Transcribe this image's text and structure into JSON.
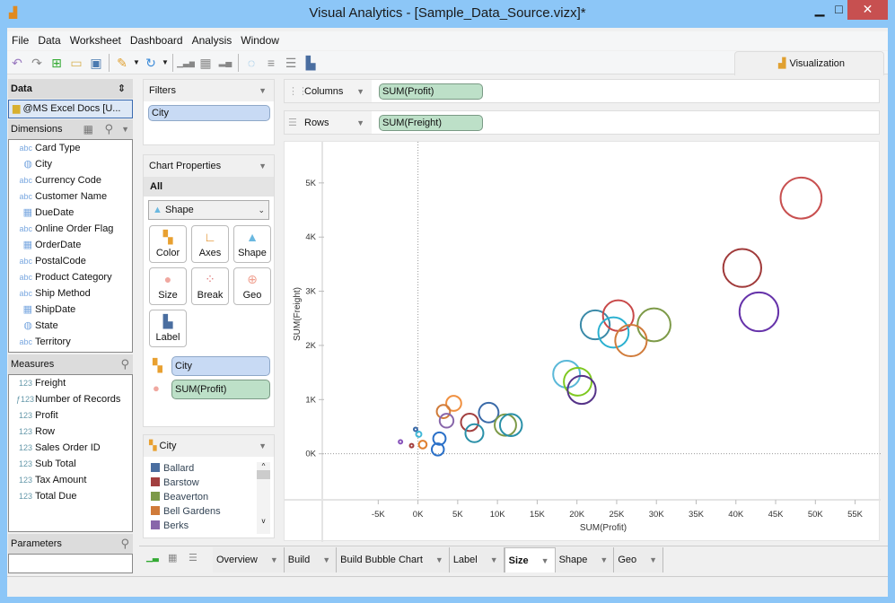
{
  "window": {
    "title": "Visual Analytics - [Sample_Data_Source.vizx]*",
    "minimize": "▁",
    "maximize": "□",
    "close": "✕"
  },
  "menu": [
    "File",
    "Data",
    "Worksheet",
    "Dashboard",
    "Analysis",
    "Window"
  ],
  "toolbar_icons": [
    "undo-icon",
    "redo-icon",
    "new-icon",
    "open-icon",
    "save-icon",
    "connect-icon",
    "refresh-icon",
    "add-chart-icon",
    "add-table-icon",
    "chart-icon",
    "lasso-icon",
    "sort-asc-icon",
    "sort-desc-icon",
    "label-icon"
  ],
  "viz_tab": "Visualization",
  "data_panel": {
    "title": "Data",
    "source": "@MS Excel Docs [U...",
    "dimensions_title": "Dimensions",
    "dimensions": [
      {
        "type": "abc",
        "label": "Card Type"
      },
      {
        "type": "geo",
        "label": "City"
      },
      {
        "type": "abc",
        "label": "Currency Code"
      },
      {
        "type": "abc",
        "label": "Customer Name"
      },
      {
        "type": "date",
        "label": "DueDate"
      },
      {
        "type": "abc",
        "label": "Online Order Flag"
      },
      {
        "type": "date",
        "label": "OrderDate"
      },
      {
        "type": "abc",
        "label": "PostalCode"
      },
      {
        "type": "abc",
        "label": "Product Category"
      },
      {
        "type": "abc",
        "label": "Ship Method"
      },
      {
        "type": "date",
        "label": "ShipDate"
      },
      {
        "type": "geo",
        "label": "State"
      },
      {
        "type": "abc",
        "label": "Territory"
      }
    ],
    "measures_title": "Measures",
    "measures": [
      {
        "type": "123",
        "label": "Freight"
      },
      {
        "type": "fx123",
        "label": "Number of Records"
      },
      {
        "type": "123",
        "label": "Profit"
      },
      {
        "type": "123",
        "label": "Row"
      },
      {
        "type": "123",
        "label": "Sales Order ID"
      },
      {
        "type": "123",
        "label": "Sub Total"
      },
      {
        "type": "123",
        "label": "Tax Amount"
      },
      {
        "type": "123",
        "label": "Total Due"
      }
    ],
    "parameters_title": "Parameters"
  },
  "filters": {
    "title": "Filters",
    "items": [
      "City"
    ]
  },
  "chart_properties": {
    "title": "Chart Properties",
    "scope": "All",
    "mark_type": "Shape",
    "buttons": [
      "Color",
      "Axes",
      "Shape",
      "Size",
      "Break",
      "Geo",
      "Label"
    ],
    "color_field": "City",
    "size_field": "SUM(Profit)"
  },
  "legend": {
    "title": "City",
    "items": [
      {
        "label": "Ballard",
        "color": "#4a6ea0"
      },
      {
        "label": "Barstow",
        "color": "#a23f3f"
      },
      {
        "label": "Beaverton",
        "color": "#7d9a48"
      },
      {
        "label": "Bell Gardens",
        "color": "#d07b3a"
      },
      {
        "label": "Berks",
        "color": "#8866aa"
      }
    ]
  },
  "shelves": {
    "columns_label": "Columns",
    "columns_pill": "SUM(Profit)",
    "rows_label": "Rows",
    "rows_pill": "SUM(Freight)"
  },
  "tabs": [
    {
      "label": "Overview"
    },
    {
      "label": "Build"
    },
    {
      "label": "Build Bubble Chart"
    },
    {
      "label": "Label"
    },
    {
      "label": "Size",
      "active": true
    },
    {
      "label": "Shape"
    },
    {
      "label": "Geo"
    }
  ],
  "chart_data": {
    "type": "scatter",
    "mark": "bubble",
    "xlabel": "SUM(Profit)",
    "ylabel": "SUM(Freight)",
    "xlim": [
      -8.2,
      55.5
    ],
    "ylim": [
      -0.85,
      5.66
    ],
    "unit": "K",
    "xticks": [
      "-5K",
      "0K",
      "5K",
      "10K",
      "15K",
      "20K",
      "25K",
      "30K",
      "35K",
      "40K",
      "45K",
      "50K",
      "55K"
    ],
    "xtick_values": [
      -5,
      0,
      5,
      10,
      15,
      20,
      25,
      30,
      35,
      40,
      45,
      50,
      55
    ],
    "yticks": [
      "0K",
      "1K",
      "2K",
      "3K",
      "4K",
      "5K"
    ],
    "ytick_values": [
      0,
      1,
      2,
      3,
      4,
      5
    ],
    "points": [
      {
        "x": 48.2,
        "y": 4.72,
        "color": "#c85050"
      },
      {
        "x": 40.8,
        "y": 3.43,
        "color": "#a03a3a"
      },
      {
        "x": 42.9,
        "y": 2.62,
        "color": "#6633aa"
      },
      {
        "x": 22.3,
        "y": 2.38,
        "color": "#3a8aa8"
      },
      {
        "x": 25.2,
        "y": 2.55,
        "color": "#c84848"
      },
      {
        "x": 24.6,
        "y": 2.24,
        "color": "#2ab0d0"
      },
      {
        "x": 29.7,
        "y": 2.38,
        "color": "#7d9a48"
      },
      {
        "x": 26.8,
        "y": 2.09,
        "color": "#d07b3a"
      },
      {
        "x": 18.7,
        "y": 1.47,
        "color": "#5ab8d8"
      },
      {
        "x": 20.1,
        "y": 1.33,
        "color": "#7ec820"
      },
      {
        "x": 20.6,
        "y": 1.18,
        "color": "#553388"
      },
      {
        "x": 4.5,
        "y": 0.93,
        "color": "#f09040"
      },
      {
        "x": 3.2,
        "y": 0.78,
        "color": "#d07b3a"
      },
      {
        "x": 3.6,
        "y": 0.61,
        "color": "#8866aa"
      },
      {
        "x": 6.5,
        "y": 0.58,
        "color": "#a23f3f"
      },
      {
        "x": 8.9,
        "y": 0.76,
        "color": "#3a6aa8"
      },
      {
        "x": 7.1,
        "y": 0.38,
        "color": "#2a90a8"
      },
      {
        "x": 11.0,
        "y": 0.53,
        "color": "#7d9a48"
      },
      {
        "x": 11.7,
        "y": 0.53,
        "color": "#2a90a8"
      },
      {
        "x": -0.3,
        "y": 0.45,
        "color": "#3a6aa8"
      },
      {
        "x": 0.1,
        "y": 0.36,
        "color": "#40b8d8"
      },
      {
        "x": 2.7,
        "y": 0.28,
        "color": "#2a70c8"
      },
      {
        "x": 2.5,
        "y": 0.08,
        "color": "#2a70c8"
      },
      {
        "x": 0.6,
        "y": 0.17,
        "color": "#e08030"
      },
      {
        "x": -0.8,
        "y": 0.15,
        "color": "#a23f3f"
      },
      {
        "x": -2.2,
        "y": 0.22,
        "color": "#8855bb"
      }
    ]
  }
}
